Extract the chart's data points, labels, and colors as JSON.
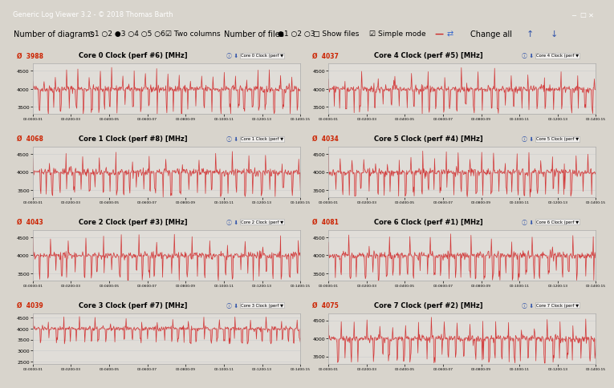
{
  "title_bar": "Generic Log Viewer 3.2 - © 2018 Thomas Barth",
  "panels": [
    {
      "title": "Core 0 Clock (perf #6) [MHz]",
      "value": "3988",
      "dropdown": "Core 0 Clock (perf #6) [M...  ▾",
      "ylim": [
        3300,
        4700
      ],
      "yticks": [
        3500,
        4000,
        4500
      ]
    },
    {
      "title": "Core 4 Clock (perf #5) [MHz]",
      "value": "4037",
      "dropdown": "Core 4 Clock (perf #5) [M...  ▾",
      "ylim": [
        3300,
        4700
      ],
      "yticks": [
        3500,
        4000,
        4500
      ]
    },
    {
      "title": "Core 1 Clock (perf #8) [MHz]",
      "value": "4068",
      "dropdown": "Core 1 Clock (perf #8) [M...  ▾",
      "ylim": [
        3300,
        4700
      ],
      "yticks": [
        3500,
        4000,
        4500
      ]
    },
    {
      "title": "Core 5 Clock (perf #4) [MHz]",
      "value": "4034",
      "dropdown": "Core 5 Clock (perf #4) [M...  ▾",
      "ylim": [
        3300,
        4700
      ],
      "yticks": [
        3500,
        4000,
        4500
      ]
    },
    {
      "title": "Core 2 Clock (perf #3) [MHz]",
      "value": "4043",
      "dropdown": "Core 2 Clock (perf #3) [M...  ▾",
      "ylim": [
        3300,
        4700
      ],
      "yticks": [
        3500,
        4000,
        4500
      ]
    },
    {
      "title": "Core 6 Clock (perf #1) [MHz]",
      "value": "4081",
      "dropdown": "Core 6 Clock (perf #1) [M...  ▾",
      "ylim": [
        3300,
        4700
      ],
      "yticks": [
        3500,
        4000,
        4500
      ]
    },
    {
      "title": "Core 3 Clock (perf #7) [MHz]",
      "value": "4039",
      "dropdown": "Core 3 Clock (perf #7) [M...  ▾",
      "ylim": [
        2400,
        4700
      ],
      "yticks": [
        2500,
        3000,
        3500,
        4000,
        4500
      ]
    },
    {
      "title": "Core 7 Clock (perf #2) [MHz]",
      "value": "4075",
      "dropdown": "Core 7 Clock (perf #2) [M...  ▾",
      "ylim": [
        3300,
        4700
      ],
      "yticks": [
        3500,
        4000,
        4500
      ]
    }
  ],
  "bg_outer": "#d8d4cc",
  "bg_panel": "#e8e4dc",
  "bg_plot": "#e0ddd8",
  "bg_titlebar": "#5c7a9e",
  "bg_toolbar": "#dcd8d0",
  "line_color": "#d03030",
  "fill_color": "#e88888",
  "value_color": "#cc2200",
  "grid_color": "#cccccc",
  "xtick_labels": [
    "00:0000:01",
    "00:0200:03",
    "00:0400:05",
    "00:0600:07",
    "00:0800:09",
    "00:1000:11",
    "00:1200:13",
    "00:1400:15"
  ],
  "n_points": 500,
  "base_freq": 4000
}
